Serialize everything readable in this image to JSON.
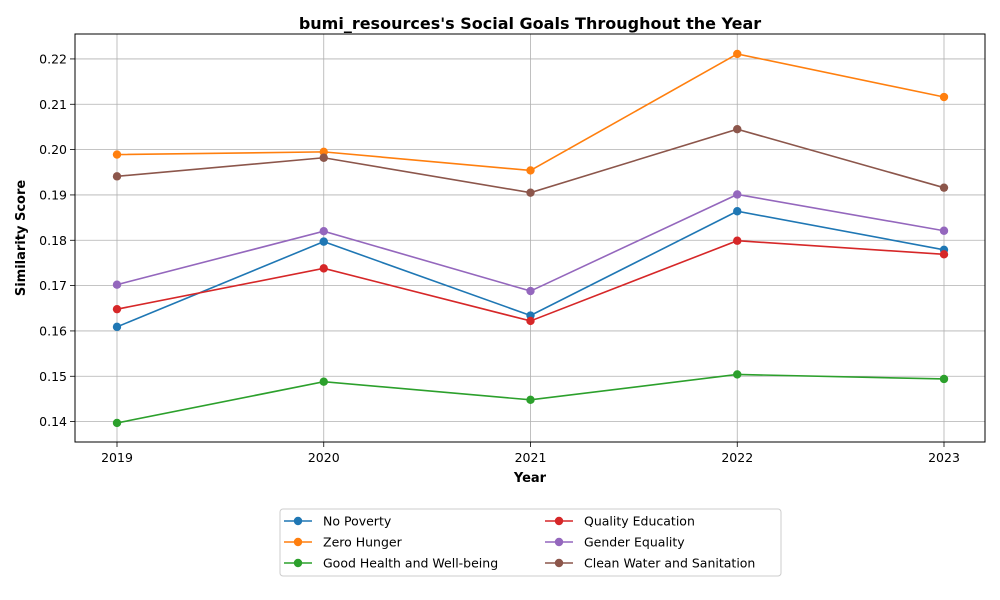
{
  "chart_data": {
    "type": "line",
    "title": "bumi_resources's Social Goals Throughout the Year",
    "xlabel": "Year",
    "ylabel": "Similarity Score",
    "x": [
      "2019",
      "2020",
      "2021",
      "2022",
      "2023"
    ],
    "ylim": [
      0.1355,
      0.2255
    ],
    "yticks": [
      "0.14",
      "0.15",
      "0.16",
      "0.17",
      "0.18",
      "0.19",
      "0.20",
      "0.21",
      "0.22"
    ],
    "grid": true,
    "legend_position": "bottom-center",
    "series": [
      {
        "name": "No Poverty",
        "color": "#1f77b4",
        "values": [
          0.1609,
          0.1797,
          0.1634,
          0.1864,
          0.1779
        ]
      },
      {
        "name": "Zero Hunger",
        "color": "#ff7f0e",
        "values": [
          0.1989,
          0.1995,
          0.1954,
          0.2211,
          0.2116
        ]
      },
      {
        "name": "Good Health and Well-being",
        "color": "#2ca02c",
        "values": [
          0.1397,
          0.1488,
          0.1448,
          0.1504,
          0.1494
        ]
      },
      {
        "name": "Quality Education",
        "color": "#d62728",
        "values": [
          0.1648,
          0.1738,
          0.1622,
          0.1799,
          0.1769
        ]
      },
      {
        "name": "Gender Equality",
        "color": "#9467bd",
        "values": [
          0.1702,
          0.182,
          0.1688,
          0.1901,
          0.1821
        ]
      },
      {
        "name": "Clean Water and Sanitation",
        "color": "#8c564b",
        "values": [
          0.1941,
          0.1982,
          0.1905,
          0.2045,
          0.1916
        ]
      }
    ]
  }
}
